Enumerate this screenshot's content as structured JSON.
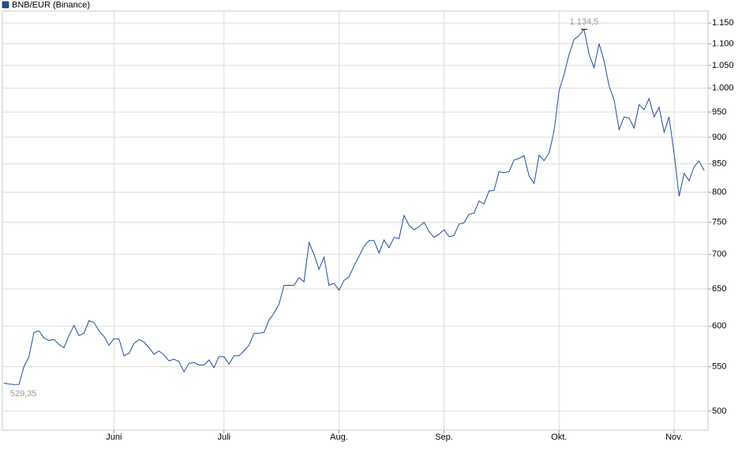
{
  "chart_data": {
    "type": "line",
    "series": [
      {
        "name": "BNB/EUR (Binance)",
        "color": "#1f4e99",
        "values": [
          531,
          530,
          529.35,
          529.5,
          550,
          562,
          592,
          594,
          585,
          582,
          583,
          577,
          573,
          588,
          601,
          588,
          591,
          607,
          605,
          594,
          587,
          576,
          584,
          584,
          563,
          566,
          578,
          583,
          580,
          573,
          565,
          569,
          564,
          557,
          559,
          556,
          544,
          554,
          555,
          552,
          552,
          558,
          549,
          562,
          562,
          553,
          563,
          563,
          569,
          576,
          591,
          591,
          592,
          608,
          617,
          629,
          655,
          655,
          655,
          666,
          660,
          718,
          700,
          678,
          696,
          655,
          658,
          648,
          662,
          667,
          683,
          697,
          712,
          721,
          721,
          702,
          722,
          710,
          726,
          724,
          761,
          745,
          738,
          743,
          750,
          735,
          726,
          731,
          738,
          727,
          729,
          747,
          749,
          763,
          765,
          785,
          780,
          802,
          803,
          836,
          834,
          836,
          857,
          860,
          865,
          828,
          815,
          866,
          856,
          870,
          912,
          995,
          1030,
          1075,
          1110,
          1120,
          1134.5,
          1075,
          1045,
          1100,
          1060,
          1005,
          975,
          915,
          940,
          938,
          918,
          965,
          955,
          978,
          940,
          960,
          910,
          940,
          870,
          793,
          833,
          820,
          845,
          855,
          838
        ],
        "value_labels": [
          null,
          null,
          "529,35",
          null,
          null,
          null,
          null,
          null,
          null,
          null,
          null,
          null,
          null,
          null,
          null,
          null,
          null,
          null,
          null,
          null,
          null,
          null,
          null,
          null,
          null,
          null,
          null,
          null,
          null,
          null,
          null,
          null,
          null,
          null,
          null,
          null,
          null,
          null,
          null,
          null,
          null,
          null,
          null,
          null,
          null,
          null,
          null,
          null,
          null,
          null,
          null,
          null,
          null,
          null,
          null,
          null,
          null,
          null,
          null,
          null,
          null,
          null,
          null,
          null,
          null,
          null,
          null,
          null,
          null,
          null,
          null,
          null,
          null,
          null,
          null,
          null,
          null,
          null,
          null,
          null,
          null,
          null,
          null,
          null,
          null,
          null,
          null,
          null,
          null,
          null,
          null,
          null,
          null,
          null,
          null,
          null,
          null,
          null,
          null,
          null,
          null,
          null,
          null,
          null,
          null,
          null,
          null,
          null,
          null,
          null,
          null,
          null,
          null,
          null,
          null,
          null,
          "1.134,5",
          null,
          null,
          null,
          null,
          null,
          null,
          null,
          null,
          null,
          null,
          null,
          null,
          null,
          null,
          null,
          null,
          null,
          null,
          null,
          null,
          null,
          null,
          null,
          null
        ]
      }
    ],
    "categories": [
      null,
      null,
      null,
      null,
      null,
      null,
      null,
      null,
      null,
      null,
      null,
      null,
      null,
      null,
      null,
      null,
      null,
      null,
      null,
      null,
      null,
      null,
      "Juni",
      null,
      null,
      null,
      null,
      null,
      null,
      null,
      null,
      null,
      null,
      null,
      null,
      null,
      null,
      null,
      null,
      null,
      null,
      null,
      null,
      null,
      "Juli",
      null,
      null,
      null,
      null,
      null,
      null,
      null,
      null,
      null,
      null,
      null,
      null,
      null,
      null,
      null,
      null,
      null,
      null,
      null,
      null,
      null,
      null,
      "Aug.",
      null,
      null,
      null,
      null,
      null,
      null,
      null,
      null,
      null,
      null,
      null,
      null,
      null,
      null,
      null,
      null,
      null,
      null,
      null,
      null,
      "Sep.",
      null,
      null,
      null,
      null,
      null,
      null,
      null,
      null,
      null,
      null,
      null,
      null,
      null,
      null,
      null,
      null,
      null,
      null,
      null,
      null,
      null,
      null,
      "Okt.",
      null,
      null,
      null,
      null,
      null,
      null,
      null,
      null,
      null,
      null,
      null,
      null,
      null,
      null,
      null,
      null,
      null,
      null,
      null,
      null,
      null,
      null,
      "Nov.",
      null,
      null,
      null,
      null,
      null,
      null
    ],
    "ylim": [
      480,
      1180
    ],
    "log_scale": true,
    "grid": true,
    "yticks": [
      500,
      550,
      600,
      650,
      700,
      750,
      800,
      850,
      900,
      950,
      {
        "value": 1000,
        "label": "1.000"
      },
      {
        "value": 1050,
        "label": "1.050"
      },
      {
        "value": 1100,
        "label": "1.100"
      },
      {
        "value": 1150,
        "label": "1.150"
      }
    ],
    "legend": "top-left"
  }
}
